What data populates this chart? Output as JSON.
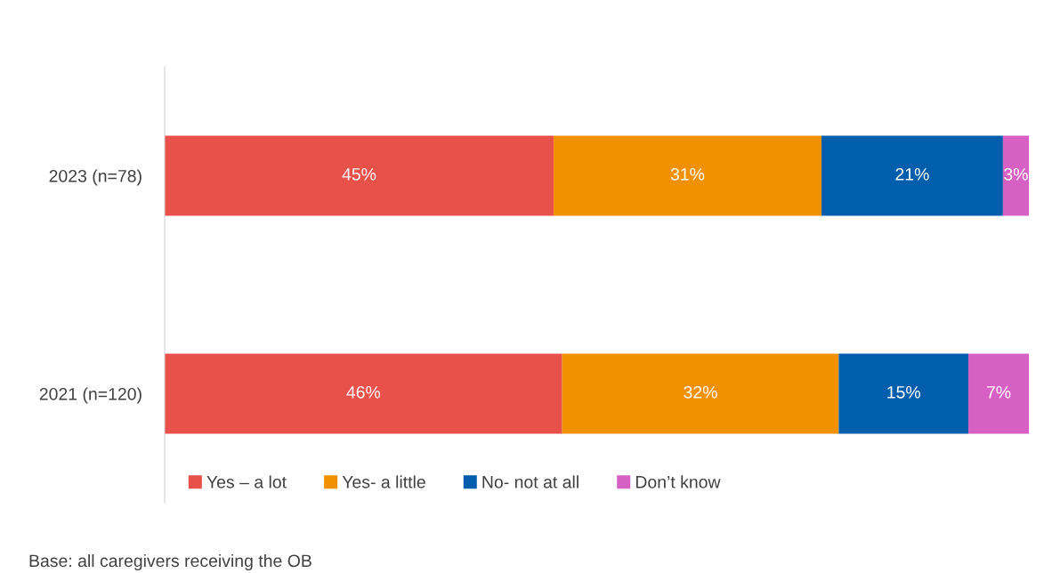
{
  "chart_data": {
    "type": "bar",
    "orientation": "horizontal",
    "stacked": true,
    "legend": "bottom",
    "grid": false,
    "categories": [
      "2023 (n=78)",
      "2021 (n=120)"
    ],
    "series": [
      {
        "name": "Yes – a lot",
        "color": "#e8504a",
        "values": [
          45,
          46
        ],
        "value_labels": [
          "45%",
          "46%"
        ]
      },
      {
        "name": "Yes- a little",
        "color": "#f29100",
        "values": [
          31,
          32
        ],
        "value_labels": [
          "31%",
          "32%"
        ]
      },
      {
        "name": "No- not at all",
        "color": "#005eac",
        "values": [
          21,
          15
        ],
        "value_labels": [
          "21%",
          "15%"
        ]
      },
      {
        "name": "Don’t know",
        "color": "#d660c4",
        "values": [
          3,
          7
        ],
        "value_labels": [
          "3%",
          "7%"
        ]
      }
    ],
    "annotations": [
      "Base: all caregivers receiving the OB"
    ]
  }
}
